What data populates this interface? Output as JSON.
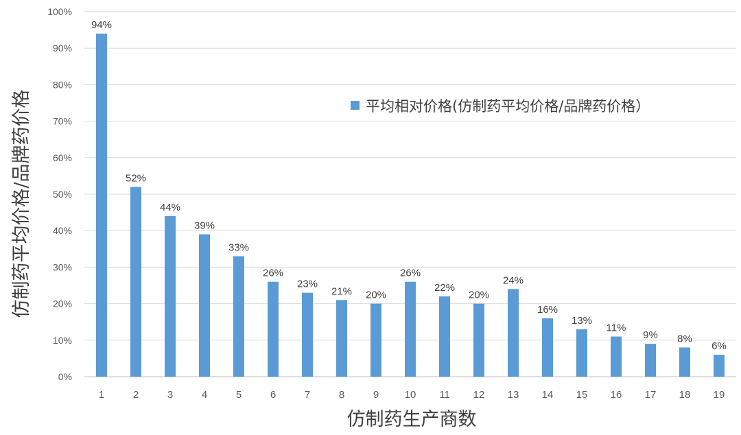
{
  "chart_data": {
    "type": "bar",
    "categories": [
      "1",
      "2",
      "3",
      "4",
      "5",
      "6",
      "7",
      "8",
      "9",
      "10",
      "11",
      "12",
      "13",
      "14",
      "15",
      "16",
      "17",
      "18",
      "19"
    ],
    "series": [
      {
        "name": "平均相对价格(仿制药平均价格/品牌药价格）",
        "values": [
          94,
          52,
          44,
          39,
          33,
          26,
          23,
          21,
          20,
          26,
          22,
          20,
          24,
          16,
          13,
          11,
          9,
          8,
          6
        ],
        "data_labels": [
          "94%",
          "52%",
          "44%",
          "39%",
          "33%",
          "26%",
          "23%",
          "21%",
          "20%",
          "26%",
          "22%",
          "20%",
          "24%",
          "16%",
          "13%",
          "11%",
          "9%",
          "8%",
          "6%"
        ]
      }
    ],
    "xlabel": "仿制药生产商数",
    "ylabel": "仿制药平均价格/品牌药价格",
    "ylim": [
      0,
      100
    ],
    "yticks": [
      0,
      10,
      20,
      30,
      40,
      50,
      60,
      70,
      80,
      90,
      100
    ],
    "ytick_labels": [
      "0%",
      "10%",
      "20%",
      "30%",
      "40%",
      "50%",
      "60%",
      "70%",
      "80%",
      "90%",
      "100%"
    ],
    "grid": true,
    "legend_position": "top-right",
    "colors": {
      "bar": "#5b9bd5",
      "grid": "#d9d9d9",
      "text": "#595959"
    }
  }
}
